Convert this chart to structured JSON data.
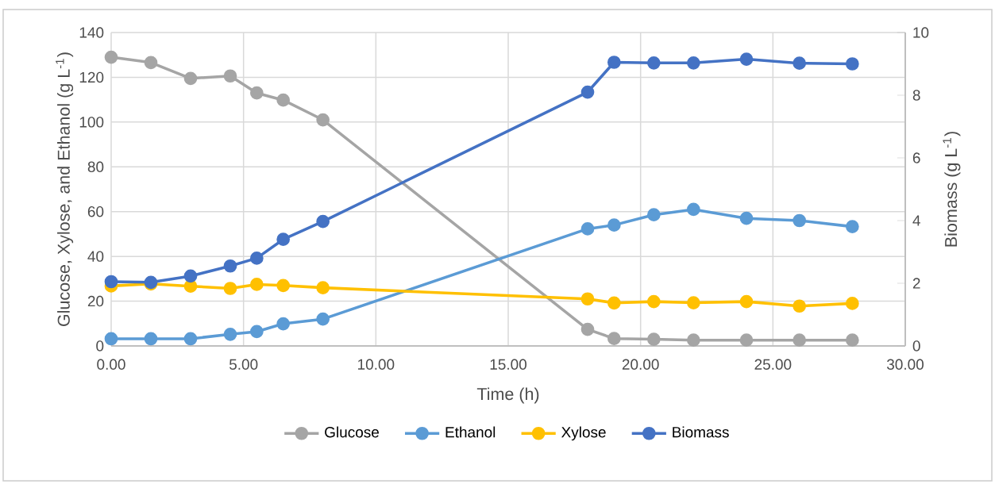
{
  "chart_data": {
    "type": "line",
    "xlabel": "Time (h)",
    "ylabel": "Glucose, Xylose, and Ethanol (g L$^{-1}$)",
    "y2label": "Biomass (g L$^{-1}$)",
    "x": [
      0,
      1.5,
      3,
      4.5,
      5.5,
      6.5,
      8,
      18,
      19,
      20.5,
      22,
      24,
      26,
      28
    ],
    "series": [
      {
        "name": "Glucose",
        "color": "#a5a5a5",
        "values": [
          129,
          126.6,
          119.5,
          120.6,
          113,
          109.8,
          101,
          7.4,
          3.3,
          3,
          2.6,
          2.6,
          2.6,
          2.6
        ]
      },
      {
        "name": "Ethanol",
        "color": "#5b9bd5",
        "values": [
          3.2,
          3.2,
          3.2,
          5.2,
          6.4,
          9.9,
          12,
          52.3,
          54,
          58.6,
          61,
          57,
          56,
          53.3
        ]
      },
      {
        "name": "Xylose",
        "color": "#ffc000",
        "values": [
          26.8,
          27.7,
          26.7,
          25.7,
          27.5,
          27,
          26,
          21,
          19.2,
          19.8,
          19.3,
          19.8,
          17.8,
          19
        ]
      },
      {
        "name": "Biomass",
        "color": "#4472c4",
        "axis": "y2",
        "type": "line",
        "values": [
          2.05,
          2.03,
          2.23,
          2.55,
          2.8,
          3.4,
          3.97,
          8.1,
          9.05,
          9.03,
          9.03,
          9.15,
          9.02,
          9.0
        ]
      }
    ],
    "xlim": [
      0,
      30
    ],
    "xticks": [
      {
        "value": 0,
        "label": "0.00"
      },
      {
        "value": 5,
        "label": "5.00"
      },
      {
        "value": 10,
        "label": "10.00"
      },
      {
        "value": 15,
        "label": "15.00"
      },
      {
        "value": 20,
        "label": "20.00"
      },
      {
        "value": 25,
        "label": "25.00"
      },
      {
        "value": 30,
        "label": "30.00"
      }
    ],
    "ylim": [
      0,
      140
    ],
    "yticks": [
      0,
      20,
      40,
      60,
      80,
      100,
      120,
      140
    ],
    "y2lim": [
      0,
      10
    ],
    "y2ticks": [
      0,
      2,
      4,
      6,
      8,
      10
    ],
    "grid": true,
    "legend": "bottom",
    "marker": "circle",
    "line_style": "solid"
  }
}
